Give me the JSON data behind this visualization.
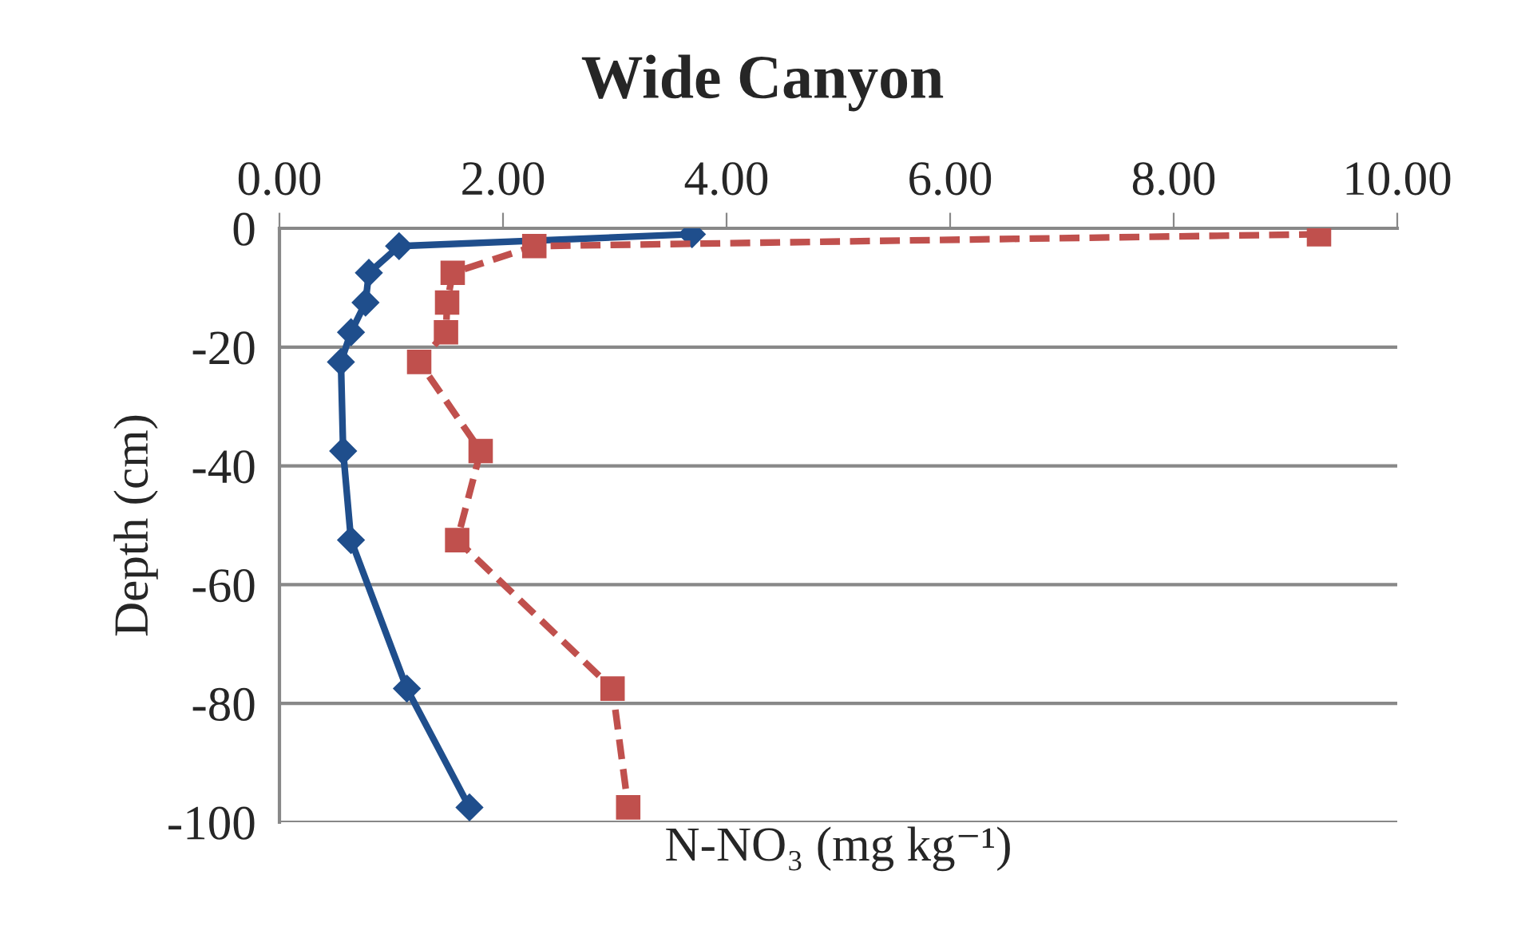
{
  "chart_data": {
    "type": "line",
    "title": "Wide Canyon",
    "xlabel": "N-NO₃ (mg kg⁻¹)",
    "ylabel": "Depth (cm)",
    "xlim": [
      0,
      10
    ],
    "xticks": [
      {
        "value": 0,
        "label": "0.00"
      },
      {
        "value": 2,
        "label": "2.00"
      },
      {
        "value": 4,
        "label": "4.00"
      },
      {
        "value": 6,
        "label": "6.00"
      },
      {
        "value": 8,
        "label": "8.00"
      },
      {
        "value": 10,
        "label": "10.00"
      }
    ],
    "ylim": [
      -100,
      0
    ],
    "yticks": [
      -100,
      -80,
      -60,
      -40,
      -20,
      0
    ],
    "grid": "y",
    "legend": false,
    "series": [
      {
        "color": "#1f4e8c",
        "marker": "diamond",
        "line_style": "solid",
        "x": [
          3.69,
          1.07,
          0.8,
          0.77,
          0.64,
          0.55,
          0.57,
          0.64,
          1.14,
          1.7
        ],
        "values": [
          -1,
          -3,
          -7.5,
          -12.5,
          -17.5,
          -22.5,
          -37.5,
          -52.5,
          -77.5,
          -97.5
        ]
      },
      {
        "color": "#c0504d",
        "marker": "square",
        "line_style": "dashed",
        "x": [
          9.3,
          2.28,
          1.55,
          1.5,
          1.49,
          1.25,
          1.8,
          1.59,
          2.98,
          3.12
        ],
        "values": [
          -1,
          -3,
          -7.5,
          -12.5,
          -17.5,
          -22.5,
          -37.5,
          -52.5,
          -77.5,
          -97.5
        ]
      }
    ]
  }
}
